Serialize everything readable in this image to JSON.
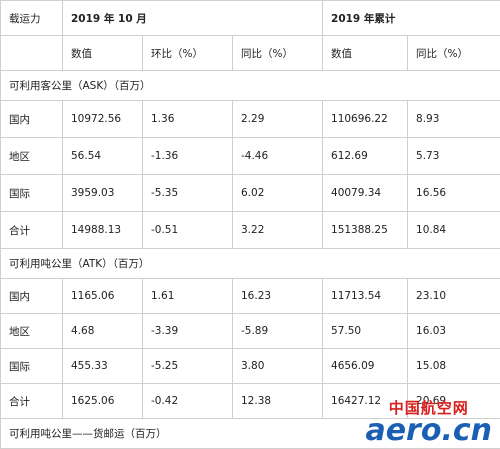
{
  "header": {
    "corner": "载运力",
    "group1": "2019 年 10 月",
    "group2": "2019 年累计",
    "columns": [
      "数值",
      "环比（%）",
      "同比（%）",
      "数值",
      "同比（%）"
    ]
  },
  "sections": [
    {
      "title": "可利用客公里（ASK）（百万）",
      "rows": [
        [
          "国内",
          "10972.56",
          "1.36",
          "2.29",
          "110696.22",
          "8.93"
        ],
        [
          "地区",
          "56.54",
          "-1.36",
          "-4.46",
          "612.69",
          "5.73"
        ],
        [
          "国际",
          "3959.03",
          "-5.35",
          "6.02",
          "40079.34",
          "16.56"
        ],
        [
          "合计",
          "14988.13",
          "-0.51",
          "3.22",
          "151388.25",
          "10.84"
        ]
      ]
    },
    {
      "title": "可利用吨公里（ATK）（百万）",
      "rows": [
        [
          "国内",
          "1165.06",
          "1.61",
          "16.23",
          "11713.54",
          "23.10"
        ],
        [
          "地区",
          "4.68",
          "-3.39",
          "-5.89",
          "57.50",
          "16.03"
        ],
        [
          "国际",
          "455.33",
          "-5.25",
          "3.80",
          "4656.09",
          "15.08"
        ],
        [
          "合计",
          "1625.06",
          "-0.42",
          "12.38",
          "16427.12",
          "20.69"
        ]
      ]
    },
    {
      "title": "可利用吨公里——货邮运（百万）"
    }
  ],
  "watermark": {
    "cn": "中国航空网",
    "en": "aero.cn"
  }
}
